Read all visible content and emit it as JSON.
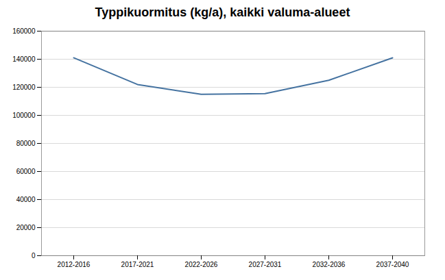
{
  "chart_data": {
    "type": "line",
    "title": "Typpikuormitus (kg/a), kaikki valuma-alueet",
    "categories": [
      "2012-2016",
      "2017-2021",
      "2022-2026",
      "2027-2031",
      "2032-2036",
      "2037-2040"
    ],
    "values": [
      141000,
      122000,
      115000,
      115500,
      125000,
      141000
    ],
    "color": "#4472a0",
    "ylim": [
      0,
      160000
    ],
    "yticks": [
      0,
      20000,
      40000,
      60000,
      80000,
      100000,
      120000,
      140000,
      160000
    ],
    "grid": true
  }
}
